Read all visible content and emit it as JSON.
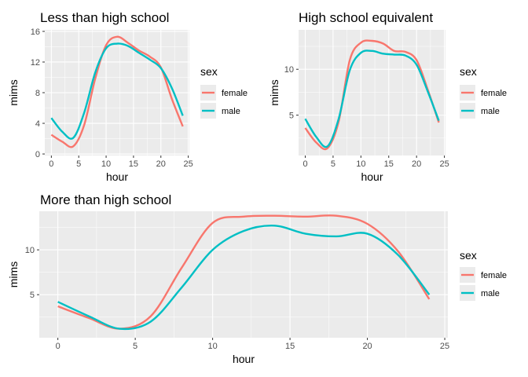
{
  "colors": {
    "female": "#F8766D",
    "male": "#00BFC4",
    "panel": "#EBEBEB",
    "grid": "#FFFFFF"
  },
  "chart_data": [
    {
      "type": "line",
      "title": "Less than high school",
      "xlabel": "hour",
      "ylabel": "mims",
      "xlim": [
        -1.2,
        25.2
      ],
      "ylim": [
        -0.2,
        16.2
      ],
      "xticks": [
        0,
        5,
        10,
        15,
        20,
        25
      ],
      "xtick_labels": [
        "0",
        "5",
        "10",
        "15",
        "20",
        "25"
      ],
      "yticks": [
        0,
        4,
        8,
        12,
        16
      ],
      "ytick_labels": [
        "0",
        "4",
        "8",
        "12",
        "16"
      ],
      "legend_title": "sex",
      "legend_position": "right",
      "series": [
        {
          "name": "female",
          "x": [
            0,
            2,
            4,
            6,
            8,
            10,
            12,
            14,
            16,
            18,
            20,
            22,
            24
          ],
          "values": [
            2.5,
            1.6,
            1.0,
            3.8,
            9.8,
            14.2,
            15.3,
            14.5,
            13.5,
            12.7,
            11.3,
            7.2,
            3.6
          ]
        },
        {
          "name": "male",
          "x": [
            0,
            2,
            4,
            6,
            8,
            10,
            12,
            14,
            16,
            18,
            20,
            22,
            24
          ],
          "values": [
            4.7,
            2.9,
            2.1,
            5.4,
            10.6,
            13.8,
            14.4,
            14.1,
            13.2,
            12.3,
            11.2,
            8.6,
            5.0
          ]
        }
      ]
    },
    {
      "type": "line",
      "title": "High school equivalent",
      "xlabel": "hour",
      "ylabel": "mims",
      "xlim": [
        -1.2,
        25.2
      ],
      "ylim": [
        0.6,
        14.3
      ],
      "xticks": [
        0,
        5,
        10,
        15,
        20,
        25
      ],
      "xtick_labels": [
        "0",
        "5",
        "10",
        "15",
        "20",
        "25"
      ],
      "yticks": [
        5,
        10
      ],
      "ytick_labels": [
        "5",
        "10"
      ],
      "legend_title": "sex",
      "legend_position": "right",
      "series": [
        {
          "name": "female",
          "x": [
            0,
            2,
            4,
            6,
            8,
            10,
            12,
            14,
            16,
            18,
            20,
            22,
            24
          ],
          "values": [
            3.6,
            2.0,
            1.4,
            4.3,
            11.0,
            12.9,
            13.1,
            12.8,
            12.0,
            11.9,
            11.0,
            7.8,
            4.2
          ]
        },
        {
          "name": "male",
          "x": [
            0,
            2,
            4,
            6,
            8,
            10,
            12,
            14,
            16,
            18,
            20,
            22,
            24
          ],
          "values": [
            4.6,
            2.6,
            1.6,
            4.6,
            9.9,
            11.8,
            12.0,
            11.7,
            11.6,
            11.5,
            10.5,
            7.6,
            4.4
          ]
        }
      ]
    },
    {
      "type": "line",
      "title": "More than high school",
      "xlabel": "hour",
      "ylabel": "mims",
      "xlim": [
        -1.2,
        25.2
      ],
      "ylim": [
        0.2,
        14.3
      ],
      "xticks": [
        0,
        5,
        10,
        15,
        20,
        25
      ],
      "xtick_labels": [
        "0",
        "5",
        "10",
        "15",
        "20",
        "25"
      ],
      "yticks": [
        5,
        10
      ],
      "ytick_labels": [
        "5",
        "10"
      ],
      "legend_title": "sex",
      "legend_position": "right",
      "series": [
        {
          "name": "female",
          "x": [
            0,
            2,
            4,
            6,
            8,
            10,
            12,
            14,
            16,
            18,
            20,
            22,
            24
          ],
          "values": [
            3.7,
            2.4,
            1.2,
            2.6,
            8.0,
            13.0,
            13.7,
            13.8,
            13.7,
            13.8,
            12.9,
            9.8,
            4.5
          ]
        },
        {
          "name": "male",
          "x": [
            0,
            2,
            4,
            6,
            8,
            10,
            12,
            14,
            16,
            18,
            20,
            22,
            24
          ],
          "values": [
            4.2,
            2.6,
            1.2,
            2.0,
            5.8,
            10.0,
            12.1,
            12.7,
            11.8,
            11.5,
            11.8,
            9.4,
            5.0
          ]
        }
      ]
    }
  ]
}
